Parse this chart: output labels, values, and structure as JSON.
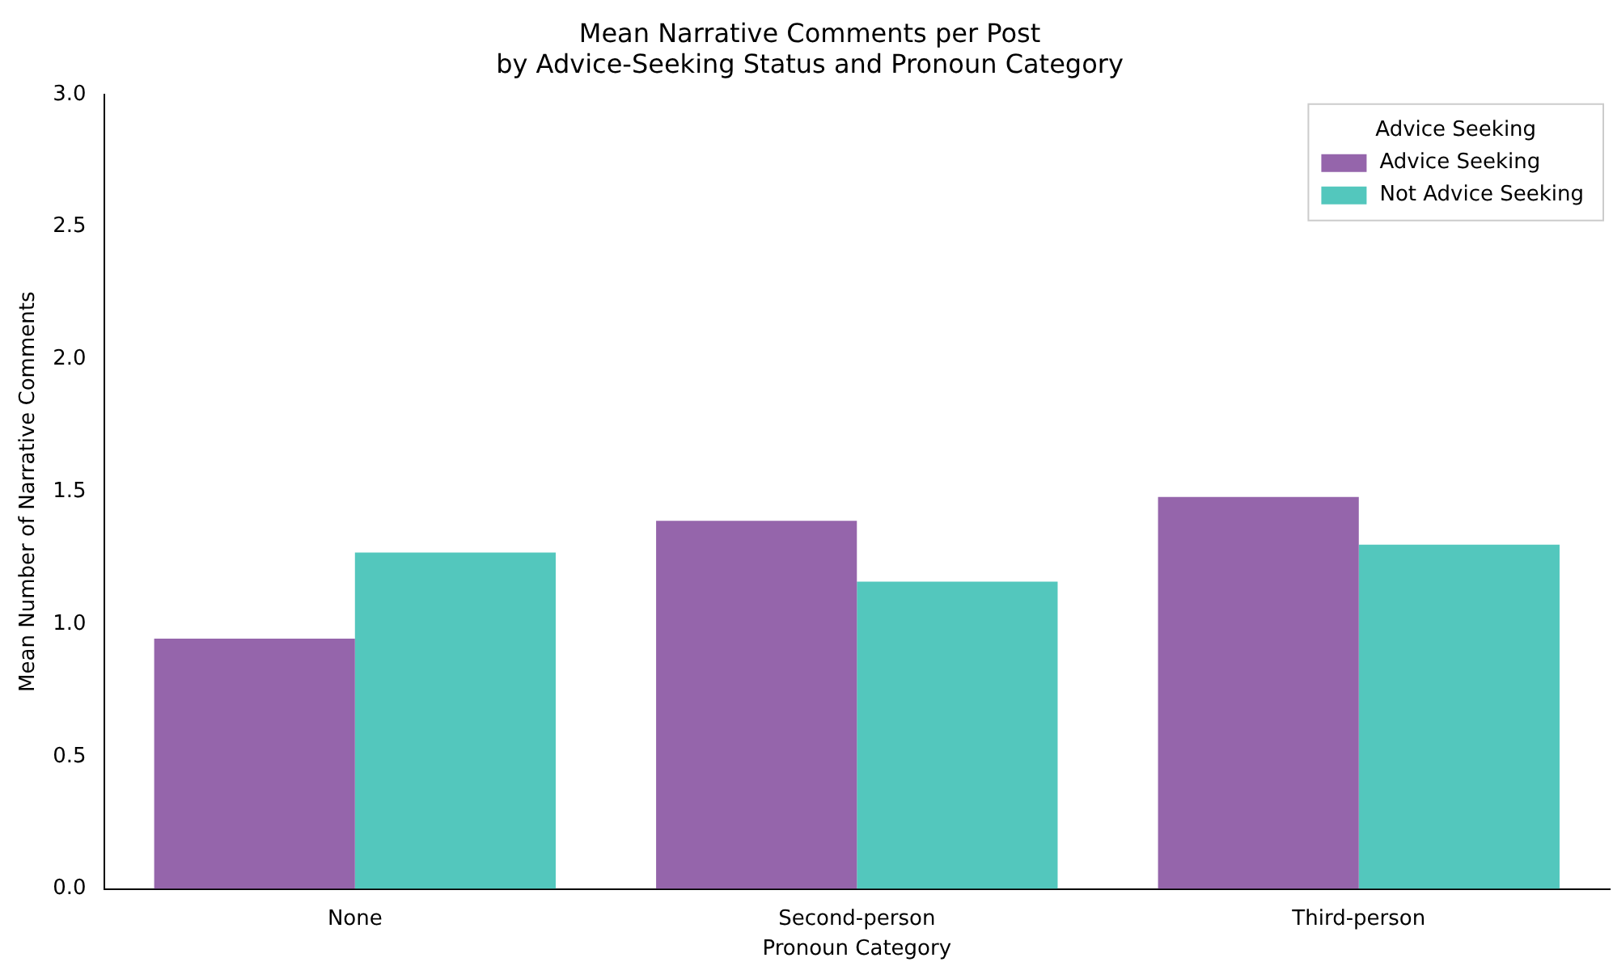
{
  "chart_data": {
    "type": "bar",
    "title": "Mean Narrative Comments per Post\nby Advice-Seeking Status and Pronoun Category",
    "xlabel": "Pronoun Category",
    "ylabel": "Mean Number of Narrative Comments",
    "legend_title": "Advice Seeking",
    "categories": [
      "None",
      "Second-person",
      "Third-person"
    ],
    "series": [
      {
        "name": "Advice Seeking",
        "color": "#9565ab",
        "values": [
          0.945,
          1.39,
          1.48
        ]
      },
      {
        "name": "Not Advice Seeking",
        "color": "#53c7bd",
        "values": [
          1.27,
          1.16,
          1.3
        ]
      }
    ],
    "ylim": [
      0,
      3
    ],
    "yticks": [
      {
        "value": 0,
        "label": "0.0"
      },
      {
        "value": 0.5,
        "label": "0.5"
      },
      {
        "value": 1,
        "label": "1.0"
      },
      {
        "value": 1.5,
        "label": "1.5"
      },
      {
        "value": 2,
        "label": "2.0"
      },
      {
        "value": 2.5,
        "label": "2.5"
      },
      {
        "value": 3,
        "label": "3.0"
      }
    ],
    "grid": false,
    "legend": "top right"
  }
}
